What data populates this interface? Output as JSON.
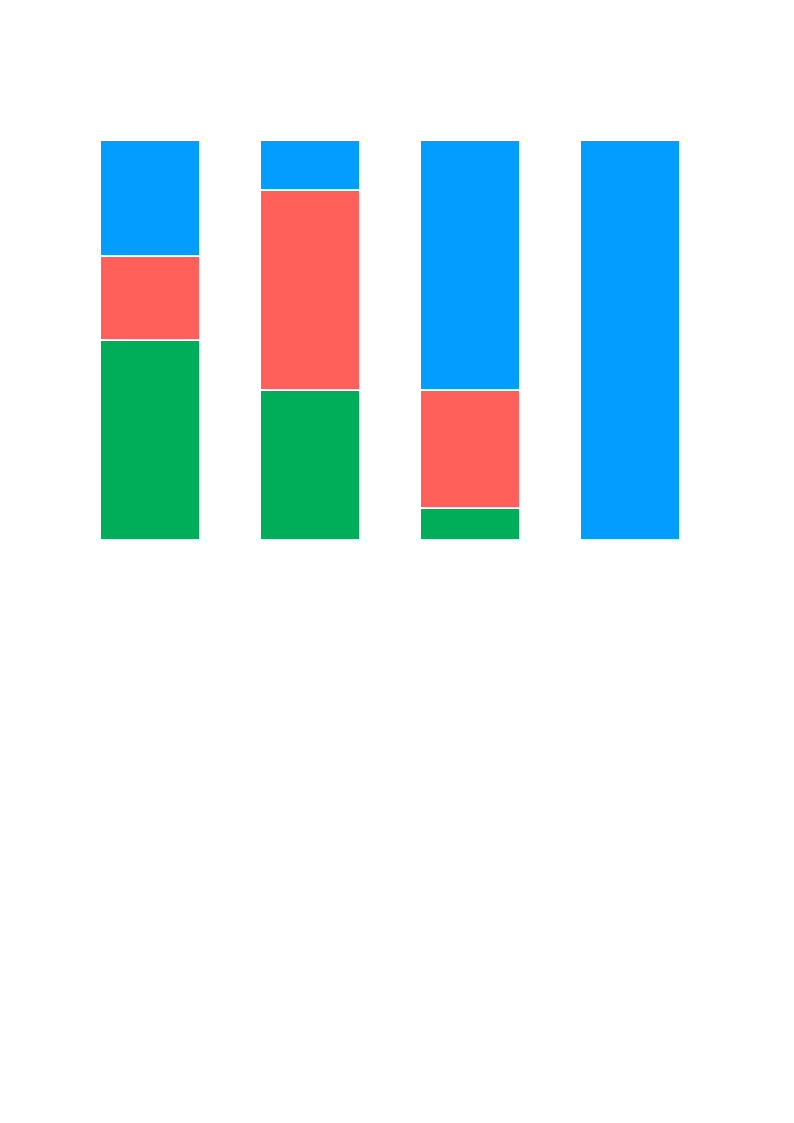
{
  "chart_data": {
    "type": "bar",
    "stacked": "percent",
    "categories": [
      "",
      "",
      "",
      ""
    ],
    "series": [
      {
        "values": [
          50,
          37.5,
          8,
          0
        ],
        "color": "#00ad58"
      },
      {
        "values": [
          21,
          50,
          29.5,
          0
        ],
        "color": "#ff605a"
      },
      {
        "values": [
          29,
          12.5,
          62.5,
          100
        ],
        "color": "#039dff"
      }
    ],
    "ylim": [
      0,
      100
    ],
    "axes_visible": false,
    "grid": false,
    "legend": "none",
    "title": "",
    "xlabel": "",
    "ylabel": ""
  }
}
